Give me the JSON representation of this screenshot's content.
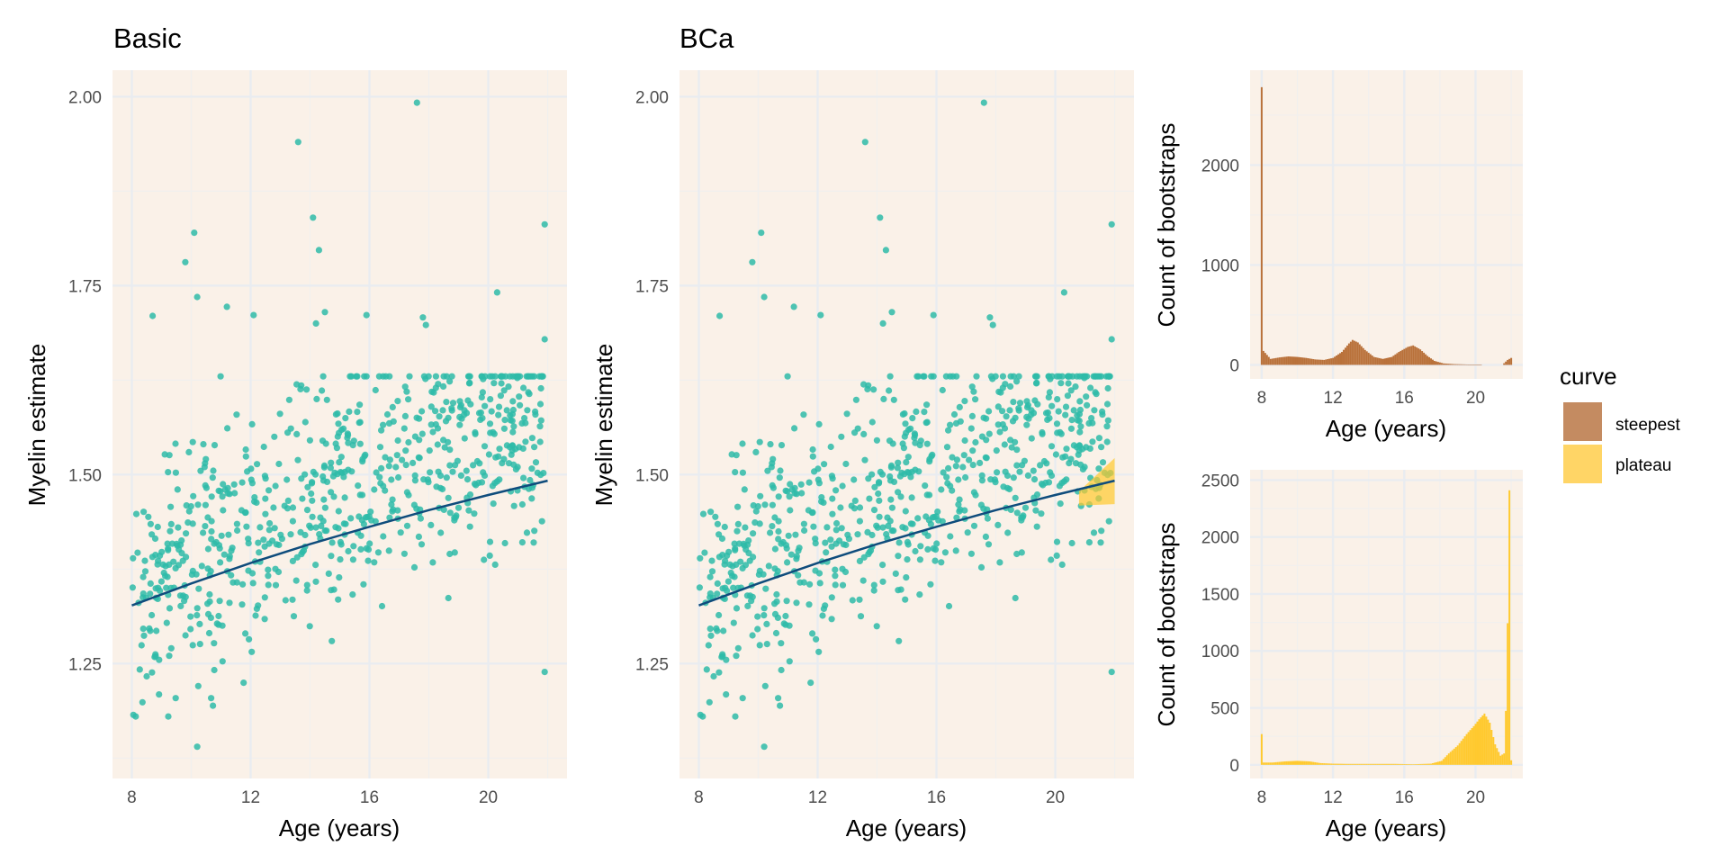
{
  "colors": {
    "panel_bg": "#FAF1E8",
    "grid_major": "#E9ECF0",
    "grid_minor": "#F1F0EE",
    "points": "#2EBBA8",
    "fit_line": "#0F4C7C",
    "ribbon": "#FFC92E",
    "steepest": "#B9713A",
    "plateau": "#FFC92E"
  },
  "legend": {
    "title": "curve",
    "items": [
      {
        "label": "steepest",
        "color": "#C48B61"
      },
      {
        "label": "plateau",
        "color": "#FFD566"
      }
    ]
  },
  "chart_data": [
    {
      "id": "basic",
      "type": "scatter",
      "title": "Basic",
      "xlabel": "Age (years)",
      "ylabel": "Myelin estimate",
      "xlim": [
        7.35,
        22.65
      ],
      "ylim": [
        1.098,
        2.035
      ],
      "xticks": [
        8,
        12,
        16,
        20
      ],
      "yticks": [
        1.25,
        1.5,
        1.75,
        2.0
      ],
      "ytick_labels": [
        "1.25",
        "1.50",
        "1.75",
        "2.00"
      ],
      "grid": true,
      "fit_line": {
        "x": [
          8,
          10,
          12,
          14,
          16,
          18,
          20,
          22
        ],
        "y": [
          1.327,
          1.356,
          1.383,
          1.408,
          1.431,
          1.453,
          1.473,
          1.492
        ]
      },
      "notable_points": [
        {
          "x": 17.6,
          "y": 1.992
        },
        {
          "x": 13.6,
          "y": 1.94
        },
        {
          "x": 14.1,
          "y": 1.84
        },
        {
          "x": 21.9,
          "y": 1.831
        },
        {
          "x": 10.1,
          "y": 1.82
        },
        {
          "x": 14.3,
          "y": 1.797
        },
        {
          "x": 9.8,
          "y": 1.781
        },
        {
          "x": 20.3,
          "y": 1.741
        },
        {
          "x": 10.2,
          "y": 1.735
        },
        {
          "x": 11.2,
          "y": 1.722
        },
        {
          "x": 14.5,
          "y": 1.715
        },
        {
          "x": 8.7,
          "y": 1.71
        },
        {
          "x": 12.1,
          "y": 1.711
        },
        {
          "x": 15.9,
          "y": 1.711
        },
        {
          "x": 17.8,
          "y": 1.708
        },
        {
          "x": 14.2,
          "y": 1.7
        },
        {
          "x": 17.9,
          "y": 1.698
        },
        {
          "x": 21.9,
          "y": 1.679
        },
        {
          "x": 10.2,
          "y": 1.14
        },
        {
          "x": 21.9,
          "y": 1.239
        }
      ]
    },
    {
      "id": "bca",
      "type": "scatter",
      "title": "BCa",
      "xlabel": "Age (years)",
      "ylabel": "Myelin estimate",
      "xlim": [
        7.35,
        22.65
      ],
      "ylim": [
        1.098,
        2.035
      ],
      "xticks": [
        8,
        12,
        16,
        20
      ],
      "yticks": [
        1.25,
        1.5,
        1.75,
        2.0
      ],
      "ytick_labels": [
        "1.25",
        "1.50",
        "1.75",
        "2.00"
      ],
      "grid": true,
      "fit_line": {
        "x": [
          8,
          10,
          12,
          14,
          16,
          18,
          20,
          22
        ],
        "y": [
          1.327,
          1.356,
          1.383,
          1.408,
          1.431,
          1.453,
          1.473,
          1.492
        ]
      },
      "plateau_ribbon": {
        "x": [
          20.8,
          22.0
        ],
        "ymin": [
          1.459,
          1.461
        ],
        "ymax": [
          1.478,
          1.522
        ]
      }
    },
    {
      "id": "steepest_hist",
      "type": "bar",
      "series_name": "steepest",
      "xlabel": "Age (years)",
      "ylabel": "Count of bootstraps",
      "xlim": [
        7.35,
        22.65
      ],
      "ylim": [
        -140,
        2950
      ],
      "xticks": [
        8,
        12,
        16,
        20
      ],
      "yticks": [
        0,
        1000,
        2000
      ],
      "grid": true,
      "points": [
        [
          8.0,
          2780
        ],
        [
          8.1,
          140
        ],
        [
          8.5,
          60
        ],
        [
          9.0,
          75
        ],
        [
          9.5,
          85
        ],
        [
          10.0,
          80
        ],
        [
          10.5,
          70
        ],
        [
          11.0,
          55
        ],
        [
          11.5,
          50
        ],
        [
          12.0,
          70
        ],
        [
          12.5,
          130
        ],
        [
          12.9,
          215
        ],
        [
          13.1,
          250
        ],
        [
          13.4,
          225
        ],
        [
          13.8,
          150
        ],
        [
          14.3,
          80
        ],
        [
          14.8,
          60
        ],
        [
          15.3,
          80
        ],
        [
          15.7,
          130
        ],
        [
          16.2,
          180
        ],
        [
          16.5,
          195
        ],
        [
          16.9,
          155
        ],
        [
          17.3,
          90
        ],
        [
          17.7,
          40
        ],
        [
          18.2,
          15
        ],
        [
          18.8,
          8
        ],
        [
          19.6,
          4
        ],
        [
          20.4,
          0
        ],
        [
          21.5,
          0
        ],
        [
          21.8,
          50
        ],
        [
          22.0,
          70
        ]
      ]
    },
    {
      "id": "plateau_hist",
      "type": "bar",
      "series_name": "plateau",
      "xlabel": "Age (years)",
      "ylabel": "Count of bootstraps",
      "xlim": [
        7.35,
        22.65
      ],
      "ylim": [
        -120,
        2590
      ],
      "xticks": [
        8,
        12,
        16,
        20
      ],
      "yticks": [
        0,
        500,
        1000,
        1500,
        2000,
        2500
      ],
      "grid": true,
      "points": [
        [
          8.0,
          270
        ],
        [
          8.1,
          20
        ],
        [
          8.6,
          20
        ],
        [
          9.3,
          30
        ],
        [
          10.0,
          35
        ],
        [
          10.7,
          30
        ],
        [
          11.3,
          15
        ],
        [
          12.0,
          10
        ],
        [
          12.8,
          8
        ],
        [
          13.5,
          8
        ],
        [
          14.5,
          8
        ],
        [
          15.5,
          8
        ],
        [
          16.5,
          5
        ],
        [
          17.5,
          10
        ],
        [
          18.1,
          35
        ],
        [
          18.5,
          100
        ],
        [
          19.0,
          170
        ],
        [
          19.5,
          270
        ],
        [
          19.9,
          340
        ],
        [
          20.2,
          400
        ],
        [
          20.5,
          450
        ],
        [
          20.8,
          370
        ],
        [
          21.1,
          180
        ],
        [
          21.4,
          80
        ],
        [
          21.6,
          100
        ],
        [
          21.75,
          660
        ],
        [
          21.9,
          2410
        ],
        [
          22.0,
          40
        ]
      ]
    }
  ]
}
